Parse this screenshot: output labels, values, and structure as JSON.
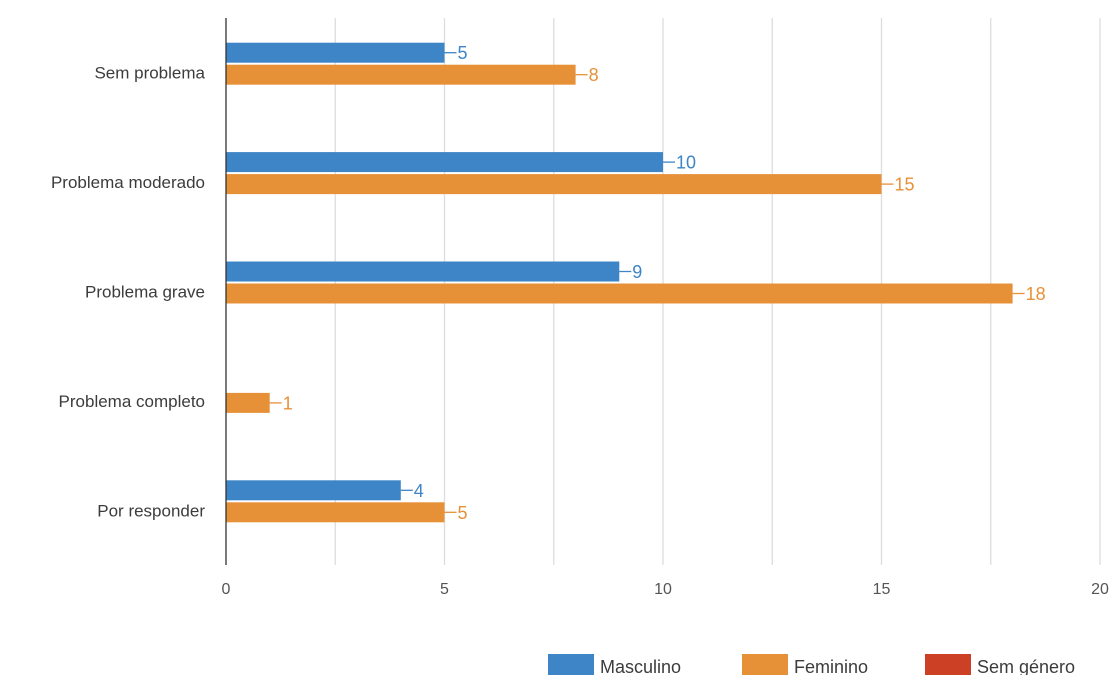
{
  "chart_data": {
    "type": "bar",
    "orientation": "horizontal",
    "title": "",
    "xlabel": "",
    "ylabel": "",
    "categories": [
      "Sem problema",
      "Problema moderado",
      "Problema grave",
      "Problema completo",
      "Por responder"
    ],
    "series": [
      {
        "name": "Masculino",
        "color": "#3d85c6",
        "values": [
          5,
          10,
          9,
          0,
          4
        ]
      },
      {
        "name": "Feminino",
        "color": "#e69138",
        "values": [
          8,
          15,
          18,
          1,
          5
        ]
      },
      {
        "name": "Sem género",
        "color": "#cc4125",
        "values": [
          0,
          0,
          0,
          0,
          0
        ]
      }
    ],
    "xlim": [
      0,
      20
    ],
    "xticks": [
      0,
      5,
      10,
      15,
      20
    ],
    "minor_grid": [
      2.5,
      7.5,
      12.5,
      17.5
    ],
    "grid": true,
    "data_labels": true,
    "legend_position": "bottom-right",
    "colors": {
      "axis": "#333333",
      "grid": "#dddddd",
      "label_text": "#3c3c3c",
      "tick_text": "#555555"
    }
  }
}
